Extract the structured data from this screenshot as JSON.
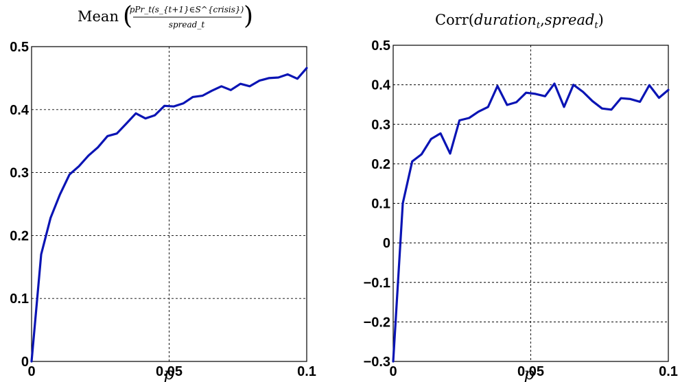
{
  "chart_data": [
    {
      "type": "line",
      "title": "Mean",
      "title_fraction": {
        "numerator": "pPr_t(s_{t+1}∈S^{crisis})",
        "denominator": "spread_t"
      },
      "xlabel": "p",
      "ylabel": "",
      "xlim": [
        0,
        0.1
      ],
      "ylim": [
        0,
        0.5
      ],
      "xticks": [
        "0",
        "0.05",
        "0.1"
      ],
      "yticks": [
        "0",
        "0.1",
        "0.2",
        "0.3",
        "0.4",
        "0.5"
      ],
      "grid": true,
      "series": [
        {
          "color": "#0a14b4",
          "x": [
            0,
            0.0035,
            0.0069,
            0.0103,
            0.0138,
            0.0172,
            0.0207,
            0.0241,
            0.0276,
            0.031,
            0.0345,
            0.0379,
            0.0414,
            0.0448,
            0.0483,
            0.0517,
            0.0552,
            0.0586,
            0.0621,
            0.0655,
            0.069,
            0.0724,
            0.0759,
            0.0793,
            0.0828,
            0.0862,
            0.0897,
            0.0931,
            0.0966,
            0.1
          ],
          "y": [
            0,
            0.17,
            0.228,
            0.265,
            0.297,
            0.31,
            0.327,
            0.34,
            0.358,
            0.362,
            0.378,
            0.394,
            0.386,
            0.391,
            0.406,
            0.405,
            0.41,
            0.42,
            0.422,
            0.43,
            0.437,
            0.431,
            0.441,
            0.437,
            0.446,
            0.45,
            0.451,
            0.456,
            0.449,
            0.466
          ]
        }
      ]
    },
    {
      "type": "line",
      "title": "Corr(duration_t,spread_t)",
      "title_parts": {
        "prefix": "Corr(",
        "arg1": "duration",
        "arg1_sub": "t",
        "sep": ",",
        "arg2": "spread",
        "arg2_sub": "t",
        "suffix": ")"
      },
      "xlabel": "p",
      "ylabel": "",
      "xlim": [
        0,
        0.1
      ],
      "ylim": [
        -0.3,
        0.5
      ],
      "xticks": [
        "0",
        "0.05",
        "0.1"
      ],
      "yticks": [
        "−0.3",
        "−0.2",
        "−0.1",
        "0",
        "0.1",
        "0.2",
        "0.3",
        "0.4",
        "0.5"
      ],
      "grid": true,
      "series": [
        {
          "color": "#0a14b4",
          "x": [
            0,
            0.0035,
            0.0069,
            0.0103,
            0.0138,
            0.0172,
            0.0207,
            0.0241,
            0.0276,
            0.031,
            0.0345,
            0.0379,
            0.0414,
            0.0448,
            0.0483,
            0.0517,
            0.0552,
            0.0586,
            0.0621,
            0.0655,
            0.069,
            0.0724,
            0.0759,
            0.0793,
            0.0828,
            0.0862,
            0.0897,
            0.0931,
            0.0966,
            0.1
          ],
          "y": [
            -0.3,
            0.1,
            0.206,
            0.224,
            0.263,
            0.277,
            0.226,
            0.31,
            0.316,
            0.332,
            0.344,
            0.397,
            0.349,
            0.356,
            0.38,
            0.377,
            0.371,
            0.403,
            0.344,
            0.4,
            0.382,
            0.359,
            0.34,
            0.337,
            0.366,
            0.364,
            0.357,
            0.399,
            0.367,
            0.387
          ]
        }
      ]
    }
  ]
}
